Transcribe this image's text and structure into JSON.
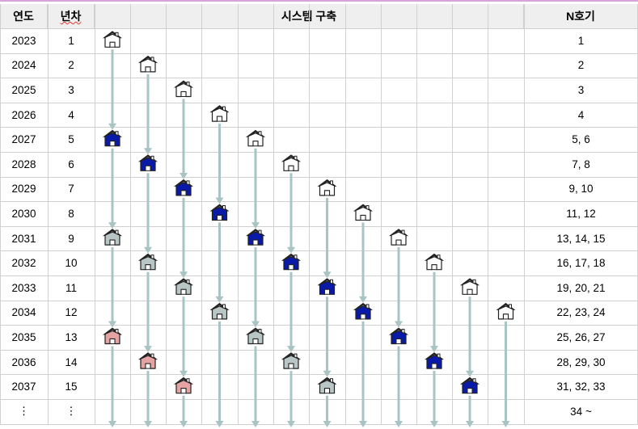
{
  "header": {
    "year": "연도",
    "nth_year": "년차",
    "system": "시스템 구축",
    "n_units": "N호기"
  },
  "rows": [
    {
      "year": "2023",
      "n": "1",
      "units": "1"
    },
    {
      "year": "2024",
      "n": "2",
      "units": "2"
    },
    {
      "year": "2025",
      "n": "3",
      "units": "3"
    },
    {
      "year": "2026",
      "n": "4",
      "units": "4"
    },
    {
      "year": "2027",
      "n": "5",
      "units": "5, 6"
    },
    {
      "year": "2028",
      "n": "6",
      "units": "7, 8"
    },
    {
      "year": "2029",
      "n": "7",
      "units": "9, 10"
    },
    {
      "year": "2030",
      "n": "8",
      "units": "11, 12"
    },
    {
      "year": "2031",
      "n": "9",
      "units": "13, 14, 15"
    },
    {
      "year": "2032",
      "n": "10",
      "units": "16, 17, 18"
    },
    {
      "year": "2033",
      "n": "11",
      "units": "19, 20, 21"
    },
    {
      "year": "2034",
      "n": "12",
      "units": "22, 23, 24"
    },
    {
      "year": "2035",
      "n": "13",
      "units": "25, 26, 27"
    },
    {
      "year": "2036",
      "n": "14",
      "units": "28, 29, 30"
    },
    {
      "year": "2037",
      "n": "15",
      "units": "31, 32, 33"
    },
    {
      "year": "⋮",
      "n": "⋮",
      "units": "34 ~"
    }
  ],
  "colors": {
    "new": "#ffffff",
    "year4": "#0a1aa8",
    "year8": "#b9c6c6",
    "year12": "#e6a3a3",
    "arrow": "#a8c4c4",
    "grid": "#d0d0d0",
    "header_bg": "#efefef"
  },
  "systems": [
    {
      "start_row": 0,
      "label": "house-icon"
    },
    {
      "start_row": 1,
      "label": "house-icon"
    },
    {
      "start_row": 2,
      "label": "house-icon"
    },
    {
      "start_row": 3,
      "label": "house-icon"
    },
    {
      "start_row": 4,
      "label": "house-icon"
    },
    {
      "start_row": 5,
      "label": "house-icon"
    },
    {
      "start_row": 6,
      "label": "house-icon"
    },
    {
      "start_row": 7,
      "label": "house-icon"
    },
    {
      "start_row": 8,
      "label": "house-icon"
    },
    {
      "start_row": 9,
      "label": "house-icon"
    },
    {
      "start_row": 10,
      "label": "house-icon"
    },
    {
      "start_row": 11,
      "label": "house-icon"
    }
  ]
}
